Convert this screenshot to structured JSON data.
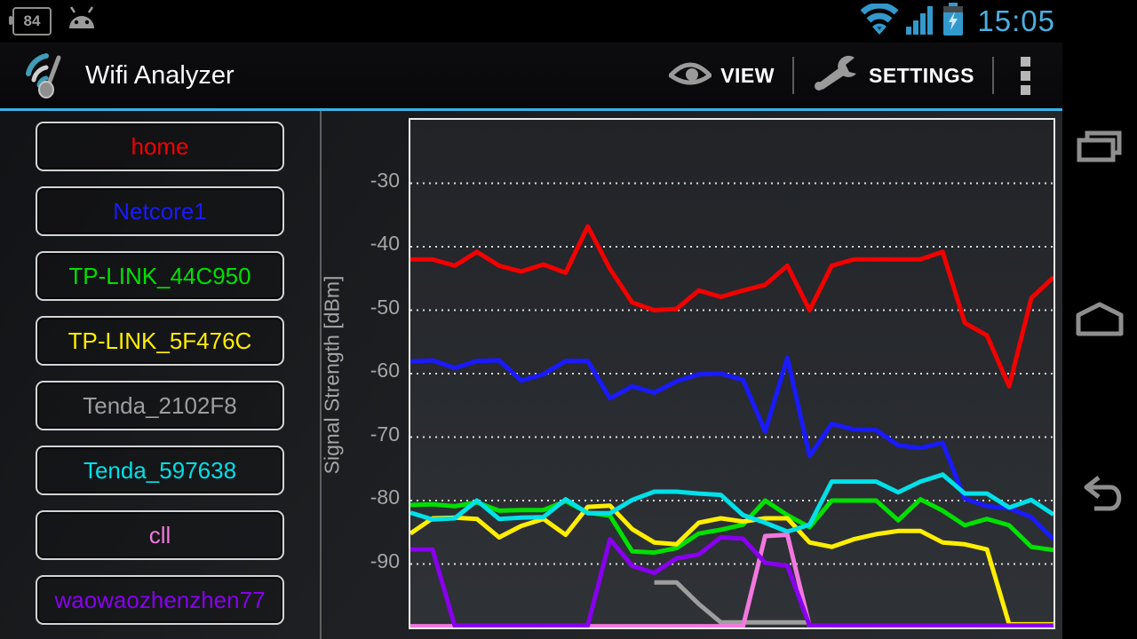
{
  "status_bar": {
    "battery_percent_label": "84",
    "time": "15:05",
    "accent_color": "#3399cc",
    "icons_left": [
      "battery-percent-icon",
      "android-robot-icon"
    ],
    "icons_right": [
      "wifi-icon",
      "signal-bars-icon",
      "battery-charging-icon"
    ]
  },
  "app_bar": {
    "title": "Wifi Analyzer",
    "logo_icon": "wifi-analyzer-logo",
    "actions": [
      {
        "label": "VIEW",
        "icon": "eye-icon"
      },
      {
        "label": "SETTINGS",
        "icon": "wrench-icon"
      }
    ],
    "overflow_icon": "overflow-menu-icon",
    "accent_color": "#38b3e8"
  },
  "sidebar": {
    "networks": [
      {
        "label": "home",
        "color": "#f20000"
      },
      {
        "label": "Netcore1",
        "color": "#1a1aff"
      },
      {
        "label": "TP-LINK_44C950",
        "color": "#00e000"
      },
      {
        "label": "TP-LINK_5F476C",
        "color": "#ffee00"
      },
      {
        "label": "Tenda_2102F8",
        "color": "#9e9e9e"
      },
      {
        "label": "Tenda_597638",
        "color": "#00e0e8"
      },
      {
        "label": "cll",
        "color": "#f278de"
      },
      {
        "label": "waowaozhenzhen77",
        "color": "#8800ee"
      }
    ]
  },
  "nav_bar": {
    "icons": [
      "recent-apps-icon",
      "home-icon",
      "back-icon"
    ]
  },
  "chart_data": {
    "type": "line",
    "title": "",
    "xlabel": "",
    "ylabel": "Signal Strength [dBm]",
    "x_count": 30,
    "ylim": [
      -100,
      -20
    ],
    "yticks": [
      -30,
      -40,
      -50,
      -60,
      -70,
      -80,
      -90
    ],
    "grid": "dotted-horizontal",
    "legend_position": "left-sidebar",
    "series": [
      {
        "name": "home",
        "color": "#f20000",
        "values": [
          -42,
          -42,
          -43,
          -40.8,
          -43,
          -43.9,
          -42.8,
          -44.1,
          -36.8,
          -43.5,
          -48.8,
          -50,
          -49.8,
          -46.9,
          -47.9,
          -46.9,
          -46,
          -43,
          -50,
          -43,
          -42,
          -42,
          -42,
          -42,
          -40.8,
          -52,
          -54,
          -62,
          -48.1,
          -44.8
        ]
      },
      {
        "name": "Netcore1",
        "color": "#1a1aff",
        "values": [
          -58.1,
          -57.9,
          -59.1,
          -58,
          -57.9,
          -61.1,
          -60.1,
          -58,
          -58,
          -63.9,
          -62,
          -63,
          -61.2,
          -60.1,
          -60,
          -61,
          -69.1,
          -57.5,
          -73,
          -67.9,
          -68.8,
          -68.9,
          -71.3,
          -71.7,
          -70.9,
          -79.7,
          -80.9,
          -81.2,
          -82.6,
          -86.1
        ]
      },
      {
        "name": "TP-LINK_44C950",
        "color": "#00e000",
        "values": [
          -80.7,
          -80.6,
          -80.9,
          -80.3,
          -81.6,
          -81.5,
          -81.5,
          -80.1,
          -81.9,
          -82.4,
          -88,
          -88.2,
          -87.5,
          -85.2,
          -84.6,
          -83.8,
          -80,
          -82.3,
          -84.2,
          -80,
          -80,
          -80,
          -83.1,
          -79.8,
          -81.6,
          -83.9,
          -82.9,
          -83.9,
          -87.3,
          -87.8
        ]
      },
      {
        "name": "TP-LINK_5F476C",
        "color": "#ffee00",
        "values": [
          -85.2,
          -82.8,
          -82.7,
          -82.9,
          -85.8,
          -84,
          -82.9,
          -85.4,
          -81,
          -80.8,
          -84.5,
          -86.6,
          -86.9,
          -83.5,
          -82.8,
          -83.3,
          -82.8,
          -82.8,
          -86.6,
          -87.3,
          -86.1,
          -85.3,
          -84.8,
          -84.8,
          -86.6,
          -86.9,
          -87.7,
          -99.5,
          -99.5,
          -99.5
        ]
      },
      {
        "name": "Tenda_2102F8",
        "color": "#9e9e9e",
        "values": [
          null,
          null,
          null,
          null,
          null,
          null,
          null,
          null,
          null,
          null,
          null,
          -92.9,
          -92.9,
          -96.3,
          -99.2,
          -99.2,
          -99.2,
          -99.2,
          -99.2,
          null,
          null,
          null,
          null,
          null,
          null,
          null,
          null,
          null,
          null,
          null
        ]
      },
      {
        "name": "Tenda_597638",
        "color": "#00e0e8",
        "values": [
          -81.9,
          -83,
          -82.8,
          -80,
          -82.9,
          -82.7,
          -82.6,
          -79.8,
          -82,
          -82,
          -79.9,
          -78.6,
          -78.6,
          -78.9,
          -79.1,
          -82.3,
          -83.5,
          -84.9,
          -83.8,
          -77,
          -77,
          -77,
          -78.7,
          -77,
          -75.9,
          -78.9,
          -78.9,
          -81.1,
          -79.9,
          -82.2
        ]
      },
      {
        "name": "cll",
        "color": "#f278de",
        "values": [
          -99.8,
          -99.8,
          -99.8,
          -99.8,
          -99.8,
          -99.8,
          -99.8,
          -99.8,
          -99.8,
          -99.8,
          -99.8,
          -99.8,
          -99.8,
          -99.8,
          -99.8,
          -99.8,
          -85.6,
          -85.4,
          -99.8,
          -99.8,
          -99.8,
          -99.8,
          -99.8,
          -99.8,
          -99.8,
          -99.8,
          -99.8,
          -99.8,
          -99.8,
          -99.8
        ]
      },
      {
        "name": "waowaozhenzhen77",
        "color": "#8800ee",
        "values": [
          -87.7,
          -87.7,
          -99.7,
          -99.7,
          -99.7,
          -99.7,
          -99.7,
          -99.7,
          -99.7,
          -86.1,
          -90.3,
          -91.4,
          -89.1,
          -88.5,
          -85.8,
          -86,
          -89.8,
          -90.3,
          -99.7,
          -99.7,
          -99.7,
          -99.7,
          -99.7,
          -99.7,
          -99.7,
          -99.7,
          -99.7,
          -99.7,
          -99.7,
          -99.7
        ]
      }
    ]
  }
}
